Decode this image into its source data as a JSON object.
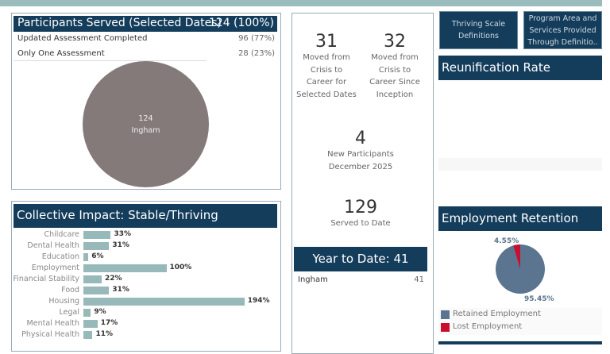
{
  "participants": {
    "title": "Participants Served (Selected Dates)",
    "total": "124 (100%)",
    "rows": [
      {
        "label": "Updated Assessment Completed",
        "value": "96 (77%)"
      },
      {
        "label": "Only One Assessment",
        "value": "28 (23%)"
      }
    ],
    "pie": {
      "value": "124",
      "label": "Ingham",
      "color": "#857a7a"
    }
  },
  "impact": {
    "title": "Collective Impact: Stable/Thriving",
    "bar_color": "#97b9b9",
    "items": [
      {
        "label": "Childcare",
        "value": 33,
        "text": "33%"
      },
      {
        "label": "Dental Health",
        "value": 31,
        "text": "31%"
      },
      {
        "label": "Education",
        "value": 6,
        "text": "6%"
      },
      {
        "label": "Employment",
        "value": 100,
        "text": "100%"
      },
      {
        "label": "Financial Stability",
        "value": 22,
        "text": "22%"
      },
      {
        "label": "Food",
        "value": 31,
        "text": "31%"
      },
      {
        "label": "Housing",
        "value": 194,
        "text": "194%"
      },
      {
        "label": "Legal",
        "value": 9,
        "text": "9%"
      },
      {
        "label": "Mental Health",
        "value": 17,
        "text": "17%"
      },
      {
        "label": "Physical Health",
        "value": 11,
        "text": "11%"
      }
    ]
  },
  "kpis": {
    "selected": {
      "value": "31",
      "l1": "Moved from",
      "l2": "Crisis to",
      "l3": "Career for",
      "l4": "Selected Dates"
    },
    "inception": {
      "value": "32",
      "l1": "Moved from",
      "l2": "Crisis to",
      "l3": "Career Since",
      "l4": "Inception"
    },
    "new": {
      "value": "4",
      "l1": "New Participants",
      "l2": "December 2025"
    },
    "served": {
      "value": "129",
      "l1": "Served to Date"
    }
  },
  "ytd": {
    "title": "Year to Date: 41",
    "row_label": "Ingham",
    "row_value": "41"
  },
  "buttons": {
    "thriving": "Thriving Scale Definitions",
    "program": "Program Area and Services Provided Through Definitio.."
  },
  "reunification": {
    "title": "Reunification Rate"
  },
  "employment": {
    "title": "Employment Retention",
    "retained_pct": 95.45,
    "lost_pct": 4.55,
    "retained_label": "95.45%",
    "lost_label": "4.55%",
    "legend": [
      {
        "label": "Retained Employment",
        "color": "#5b7590"
      },
      {
        "label": "Lost Employment",
        "color": "#c8102e"
      }
    ]
  },
  "colors": {
    "header": "#143d5c",
    "topbar": "#9bbcbc"
  }
}
